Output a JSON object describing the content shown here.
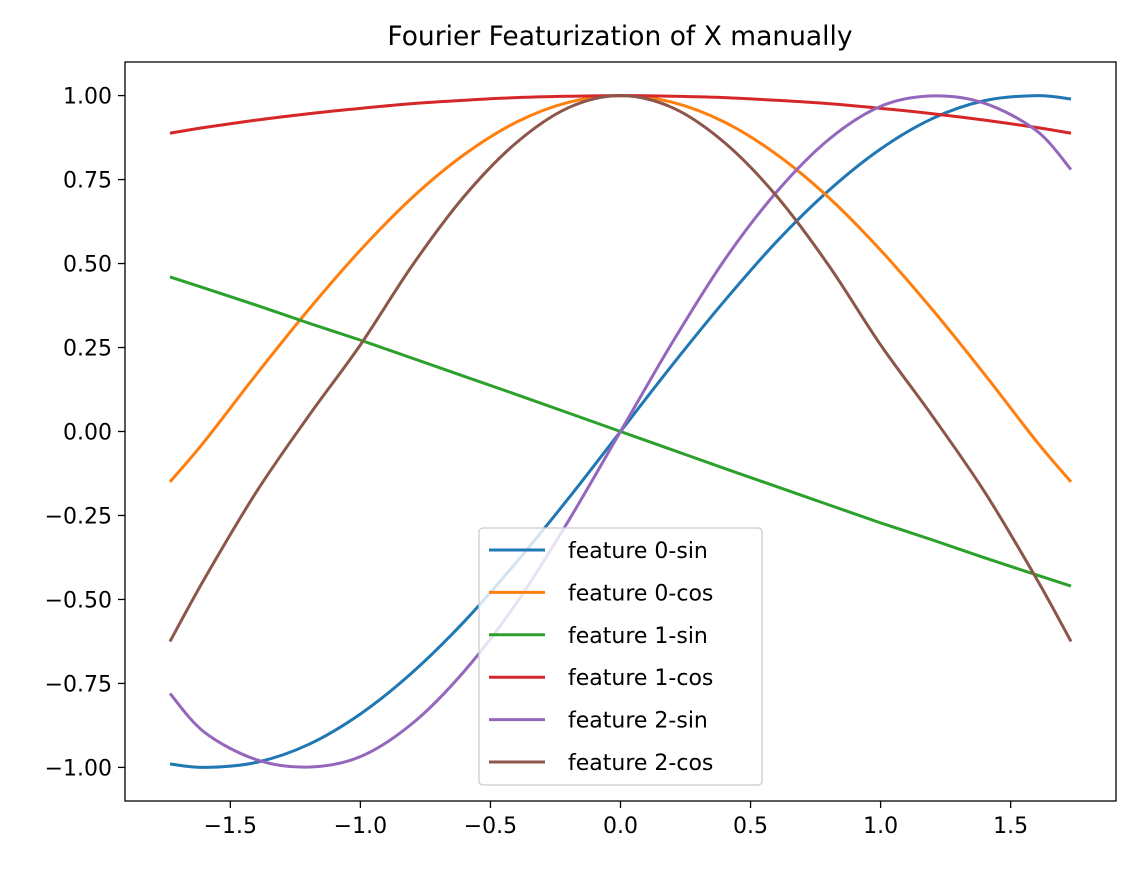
{
  "chart_data": {
    "type": "line",
    "title": "Fourier Featurization of X manually",
    "xlabel": "",
    "ylabel": "",
    "xlim": [
      -1.905,
      1.905
    ],
    "ylim": [
      -1.1,
      1.1
    ],
    "xticks": [
      -1.5,
      -1.0,
      -0.5,
      0.0,
      0.5,
      1.0,
      1.5
    ],
    "xtick_labels": [
      "−1.5",
      "−1.0",
      "−0.5",
      "0.0",
      "0.5",
      "1.0",
      "1.5"
    ],
    "yticks": [
      1.0,
      0.75,
      0.5,
      0.25,
      0.0,
      -0.25,
      -0.5,
      -0.75,
      -1.0
    ],
    "ytick_labels": [
      "1.00",
      "0.75",
      "0.50",
      "0.25",
      "0.00",
      "−0.25",
      "−0.50",
      "−0.75",
      "−1.00"
    ],
    "grid": false,
    "legend_position": "lower center",
    "x": [
      -1.732,
      -1.6,
      -1.4,
      -1.2,
      -1.0,
      -0.8,
      -0.6,
      -0.4,
      -0.2,
      0.0,
      0.2,
      0.4,
      0.6,
      0.8,
      1.0,
      1.2,
      1.4,
      1.6,
      1.732
    ],
    "series": [
      {
        "name": "feature 0-sin",
        "color": "#1f77b4",
        "values": [
          -0.99,
          -1.0,
          -0.985,
          -0.932,
          -0.841,
          -0.717,
          -0.565,
          -0.389,
          -0.199,
          0.0,
          0.199,
          0.389,
          0.565,
          0.717,
          0.841,
          0.932,
          0.985,
          1.0,
          0.99
        ]
      },
      {
        "name": "feature 0-cos",
        "color": "#ff7f0e",
        "values": [
          -0.15,
          -0.03,
          0.17,
          0.362,
          0.54,
          0.697,
          0.825,
          0.921,
          0.98,
          1.0,
          0.98,
          0.921,
          0.825,
          0.697,
          0.54,
          0.362,
          0.17,
          -0.03,
          -0.15
        ]
      },
      {
        "name": "feature 1-sin",
        "color": "#2ca02c",
        "values": [
          0.46,
          0.427,
          0.376,
          0.323,
          0.272,
          0.218,
          0.164,
          0.11,
          0.055,
          0.0,
          -0.055,
          -0.11,
          -0.164,
          -0.218,
          -0.272,
          -0.323,
          -0.376,
          -0.427,
          -0.46
        ]
      },
      {
        "name": "feature 1-cos",
        "color": "#d62728",
        "values": [
          0.888,
          0.905,
          0.927,
          0.946,
          0.962,
          0.976,
          0.986,
          0.994,
          0.998,
          1.0,
          0.998,
          0.994,
          0.986,
          0.976,
          0.962,
          0.946,
          0.927,
          0.905,
          0.888
        ]
      },
      {
        "name": "feature 2-sin",
        "color": "#9467bd",
        "values": [
          -0.78,
          -0.895,
          -0.977,
          -0.999,
          -0.968,
          -0.869,
          -0.713,
          -0.511,
          -0.266,
          0.0,
          0.266,
          0.511,
          0.713,
          0.869,
          0.968,
          0.999,
          0.977,
          0.895,
          0.78
        ]
      },
      {
        "name": "feature 2-cos",
        "color": "#8c564b",
        "values": [
          -0.625,
          -0.439,
          -0.18,
          0.045,
          0.258,
          0.495,
          0.701,
          0.86,
          0.964,
          1.0,
          0.964,
          0.86,
          0.701,
          0.495,
          0.258,
          0.045,
          -0.18,
          -0.439,
          -0.625
        ]
      }
    ]
  }
}
